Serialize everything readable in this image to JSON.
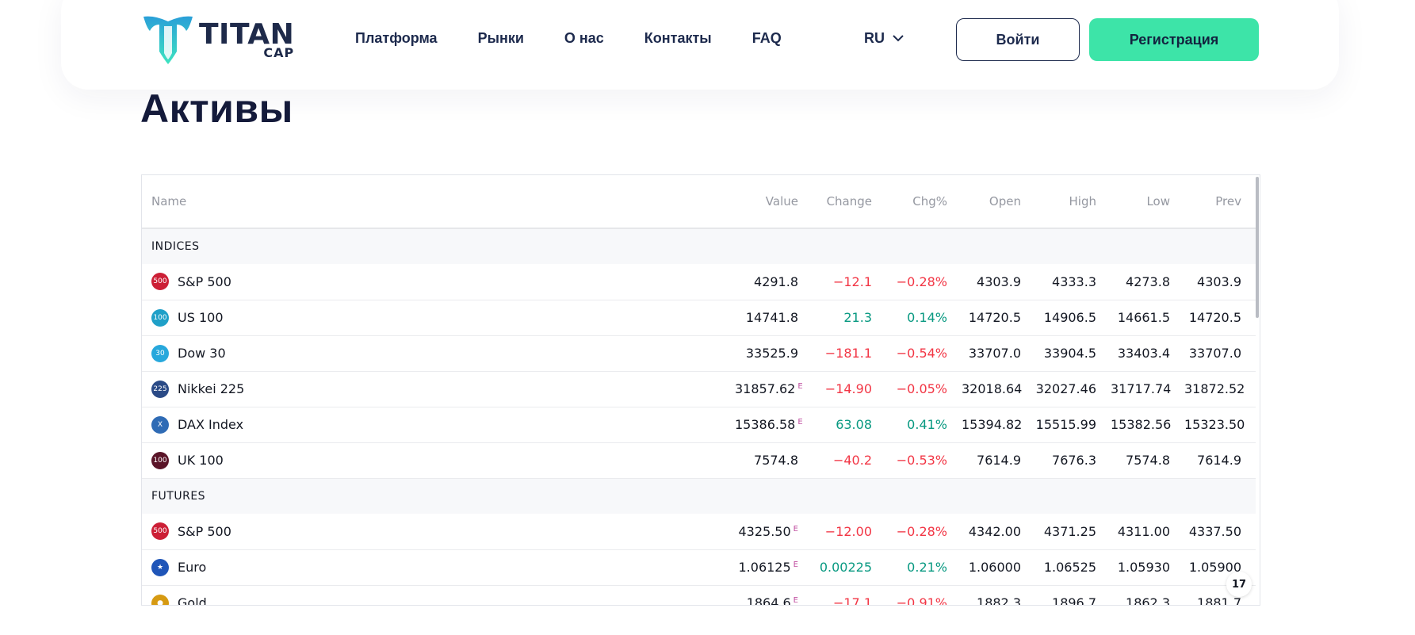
{
  "header": {
    "logo": {
      "title": "TITAN",
      "subtitle": "CAP"
    },
    "nav": [
      "Платформа",
      "Рынки",
      "О нас",
      "Контакты",
      "FAQ"
    ],
    "language": "RU",
    "login_label": "Войти",
    "register_label": "Регистрация",
    "colors": {
      "accent": "#3de4a8",
      "brand_dark": "#1d2a4d",
      "logo_cyan": "#2bc4d8"
    }
  },
  "page_title": "Активы",
  "table": {
    "columns": [
      "Name",
      "Value",
      "Change",
      "Chg%",
      "Open",
      "High",
      "Low",
      "Prev"
    ],
    "groups": [
      {
        "label": "INDICES",
        "rows": [
          {
            "icon_text": "500",
            "icon_color": "#cc1f36",
            "name": "S&P 500",
            "value": "4291.8",
            "e": "",
            "change": "−12.1",
            "chg_pct": "−0.28%",
            "dir": "neg",
            "open": "4303.9",
            "high": "4333.3",
            "low": "4273.8",
            "prev": "4303.9"
          },
          {
            "icon_text": "100",
            "icon_color": "#1fa0c8",
            "name": "US 100",
            "value": "14741.8",
            "e": "",
            "change": "21.3",
            "chg_pct": "0.14%",
            "dir": "pos",
            "open": "14720.5",
            "high": "14906.5",
            "low": "14661.5",
            "prev": "14720.5"
          },
          {
            "icon_text": "30",
            "icon_color": "#27a8dc",
            "name": "Dow 30",
            "value": "33525.9",
            "e": "",
            "change": "−181.1",
            "chg_pct": "−0.54%",
            "dir": "neg",
            "open": "33707.0",
            "high": "33904.5",
            "low": "33403.4",
            "prev": "33707.0"
          },
          {
            "icon_text": "225",
            "icon_color": "#2a4a86",
            "name": "Nikkei 225",
            "value": "31857.62",
            "e": "E",
            "change": "−14.90",
            "chg_pct": "−0.05%",
            "dir": "neg",
            "open": "32018.64",
            "high": "32027.46",
            "low": "31717.74",
            "prev": "31872.52"
          },
          {
            "icon_text": "X",
            "icon_color": "#2f6bb5",
            "name": "DAX Index",
            "value": "15386.58",
            "e": "E",
            "change": "63.08",
            "chg_pct": "0.41%",
            "dir": "pos",
            "open": "15394.82",
            "high": "15515.99",
            "low": "15382.56",
            "prev": "15323.50"
          },
          {
            "icon_text": "100",
            "icon_color": "#5a1428",
            "name": "UK 100",
            "value": "7574.8",
            "e": "",
            "change": "−40.2",
            "chg_pct": "−0.53%",
            "dir": "neg",
            "open": "7614.9",
            "high": "7676.3",
            "low": "7574.8",
            "prev": "7614.9"
          }
        ]
      },
      {
        "label": "FUTURES",
        "rows": [
          {
            "icon_text": "500",
            "icon_color": "#cc1f36",
            "name": "S&P 500",
            "value": "4325.50",
            "e": "E",
            "change": "−12.00",
            "chg_pct": "−0.28%",
            "dir": "neg",
            "open": "4342.00",
            "high": "4371.25",
            "low": "4311.00",
            "prev": "4337.50"
          },
          {
            "icon_text": "★",
            "icon_color": "#1f55b8",
            "name": "Euro",
            "value": "1.06125",
            "e": "E",
            "change": "0.00225",
            "chg_pct": "0.21%",
            "dir": "pos",
            "open": "1.06000",
            "high": "1.06525",
            "low": "1.05930",
            "prev": "1.05900"
          },
          {
            "icon_text": "●",
            "icon_color": "#d69a12",
            "name": "Gold",
            "value": "1864.6",
            "e": "E",
            "change": "−17.1",
            "chg_pct": "−0.91%",
            "dir": "neg",
            "open": "1882.3",
            "high": "1896.7",
            "low": "1862.3",
            "prev": "1881.7"
          }
        ]
      }
    ]
  },
  "tv_badge": "17"
}
